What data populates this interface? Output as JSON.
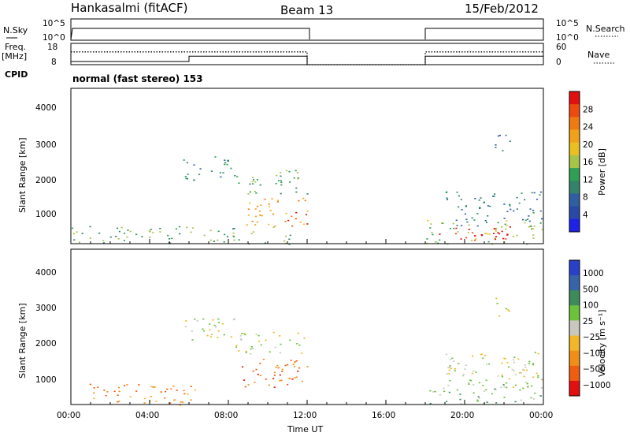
{
  "header": {
    "station": "Hankasalmi (fitACF)",
    "beam": "Beam 13",
    "date": "15/Feb/2012"
  },
  "sky_panel": {
    "left_label": "N.Sky",
    "right_label": "N.Search",
    "left_ticks": [
      "10^5",
      "10^0"
    ],
    "right_ticks": [
      "10^5",
      "10^0"
    ]
  },
  "freq_panel": {
    "left_label_1": "Freq.",
    "left_label_2": "[MHz]",
    "right_label": "Nave",
    "left_ticks": [
      "18",
      "8"
    ],
    "right_ticks": [
      "60",
      "0"
    ]
  },
  "cpid": {
    "label": "CPID",
    "mode": "normal (fast stereo) 153"
  },
  "colors": {
    "power_scale": [
      "#1e22e6",
      "#2a49a6",
      "#2f5fa0",
      "#33836a",
      "#2f9f55",
      "#a7c44a",
      "#e9c022",
      "#f0a11a",
      "#f07a12",
      "#ee4a10",
      "#e01010"
    ],
    "velocity_scale": [
      "#2a40c8",
      "#3763a8",
      "#3d8a5a",
      "#6cc23a",
      "#c8c8be",
      "#f2b728",
      "#f08f18",
      "#ee5d10",
      "#e21010"
    ]
  },
  "chart_data": [
    {
      "type": "heatmap",
      "quantity": "Power",
      "ylabel": "Slant Range [km]",
      "xlabel": "",
      "ylim": [
        200,
        4600
      ],
      "yticks": [
        "1000",
        "2000",
        "3000",
        "4000"
      ],
      "xticks": [
        "00:00",
        "04:00",
        "08:00",
        "12:00",
        "16:00",
        "20:00",
        "00:00"
      ],
      "colorbar_label": "Power [dB]",
      "colorbar_ticks": [
        "4",
        "8",
        "12",
        "16",
        "20",
        "24",
        "28"
      ],
      "colorbar_range": [
        0,
        32
      ],
      "regions": [
        {
          "t0": 0.0,
          "t1": 12.0,
          "r0": 200,
          "r1": 700,
          "level": 4
        },
        {
          "t0": 5.7,
          "t1": 8.3,
          "r0": 2000,
          "r1": 2700,
          "level": 3
        },
        {
          "t0": 8.3,
          "t1": 12.0,
          "r0": 1600,
          "r1": 2300,
          "level": 4
        },
        {
          "t0": 8.6,
          "t1": 12.0,
          "r0": 700,
          "r1": 1500,
          "level": 7
        },
        {
          "t0": 11.0,
          "t1": 12.0,
          "r0": 700,
          "r1": 1200,
          "level": 10
        },
        {
          "t0": 18.0,
          "t1": 24.0,
          "r0": 200,
          "r1": 900,
          "level": 5
        },
        {
          "t0": 18.5,
          "t1": 22.5,
          "r0": 300,
          "r1": 700,
          "level": 10
        },
        {
          "t0": 19.0,
          "t1": 24.0,
          "r0": 700,
          "r1": 1700,
          "level": 3
        },
        {
          "t0": 21.5,
          "t1": 22.3,
          "r0": 2700,
          "r1": 3300,
          "level": 2
        }
      ]
    },
    {
      "type": "heatmap",
      "quantity": "Velocity",
      "ylabel": "Slant Range [km]",
      "xlabel": "Time UT",
      "ylim": [
        200,
        4600
      ],
      "yticks": [
        "1000",
        "2000",
        "3000",
        "4000"
      ],
      "xticks": [
        "00:00",
        "04:00",
        "08:00",
        "12:00",
        "16:00",
        "20:00",
        "00:00"
      ],
      "colorbar_label": "Velocity [m s⁻¹]",
      "colorbar_ticks": [
        "1000",
        "500",
        "100",
        "25",
        "−25",
        "−100",
        "−500",
        "−1000"
      ],
      "regions": [
        {
          "t0": 0.5,
          "t1": 6.3,
          "r0": 200,
          "r1": 800,
          "level": 6
        },
        {
          "t0": 5.7,
          "t1": 8.3,
          "r0": 2000,
          "r1": 2700,
          "level": 4
        },
        {
          "t0": 8.3,
          "t1": 12.0,
          "r0": 1600,
          "r1": 2300,
          "level": 4
        },
        {
          "t0": 8.6,
          "t1": 12.0,
          "r0": 700,
          "r1": 1500,
          "level": 7
        },
        {
          "t0": 18.0,
          "t1": 24.0,
          "r0": 200,
          "r1": 900,
          "level": 3
        },
        {
          "t0": 19.0,
          "t1": 24.0,
          "r0": 700,
          "r1": 1700,
          "level": 4
        },
        {
          "t0": 21.5,
          "t1": 22.3,
          "r0": 2700,
          "r1": 3300,
          "level": 4
        }
      ]
    },
    {
      "type": "line",
      "quantity": "Frequency",
      "ylabel": "Freq. [MHz]",
      "ylim": [
        8,
        18
      ],
      "series": [
        {
          "name": "Freq.",
          "x": [
            0,
            6,
            6,
            12,
            12,
            18,
            18,
            24
          ],
          "y": [
            9.5,
            9.5,
            12,
            12,
            8,
            8,
            12,
            12
          ]
        },
        {
          "name": "Nave",
          "x": [
            0,
            12,
            12,
            18,
            18,
            24
          ],
          "y": [
            14,
            14,
            8,
            8,
            14,
            14
          ]
        }
      ]
    }
  ]
}
